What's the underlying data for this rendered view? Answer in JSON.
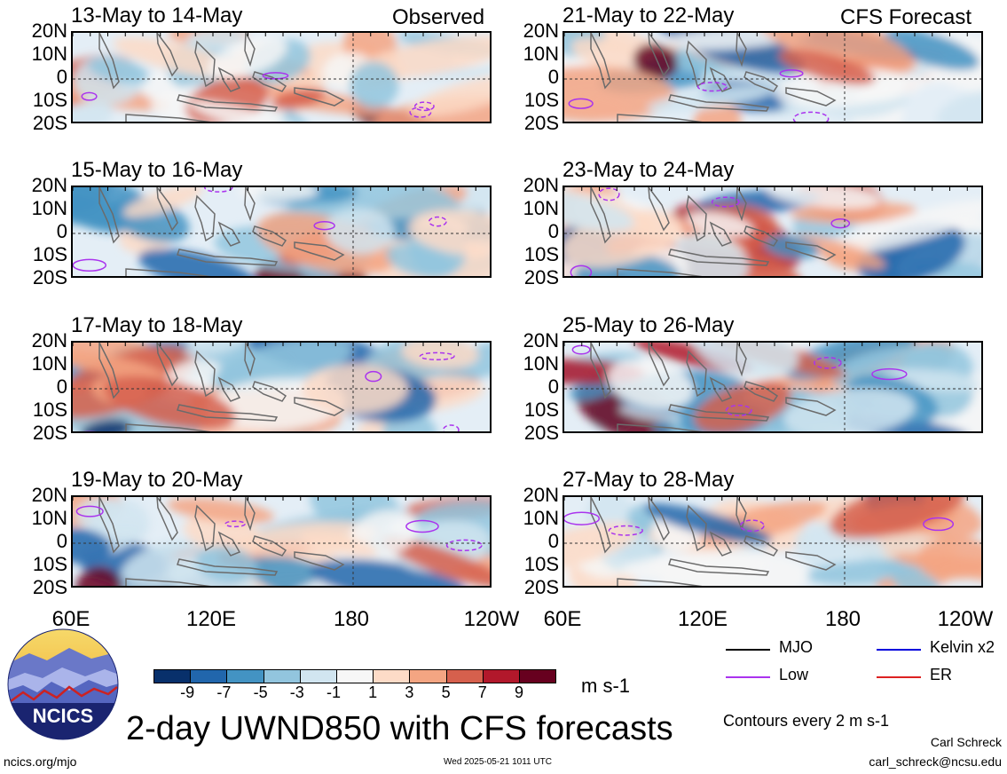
{
  "panels": [
    {
      "title": "13-May to 14-May",
      "tag": "Observed"
    },
    {
      "title": "21-May to 22-May",
      "tag": "CFS Forecast"
    },
    {
      "title": "15-May to 16-May",
      "tag": ""
    },
    {
      "title": "23-May to 24-May",
      "tag": ""
    },
    {
      "title": "17-May to 18-May",
      "tag": ""
    },
    {
      "title": "25-May to 26-May",
      "tag": ""
    },
    {
      "title": "19-May to 20-May",
      "tag": ""
    },
    {
      "title": "27-May to 28-May",
      "tag": ""
    }
  ],
  "chart_data": {
    "type": "heatmap",
    "title": "2-day UWND850 with CFS forecasts",
    "units": "m s-1",
    "y_ticks": [
      "20N",
      "10N",
      "0",
      "10S",
      "20S"
    ],
    "x_ticks": [
      "60E",
      "120E",
      "180",
      "120W"
    ],
    "colorbar": {
      "labels": [
        "-9",
        "-7",
        "-5",
        "-3",
        "-1",
        "1",
        "3",
        "5",
        "7",
        "9"
      ],
      "colors": [
        "#08306b",
        "#2166ac",
        "#4393c3",
        "#92c5de",
        "#d1e5f0",
        "#f7f7f7",
        "#fddbc7",
        "#f4a582",
        "#d6604d",
        "#b2182b",
        "#67001f"
      ]
    },
    "legend": [
      {
        "label": "MJO",
        "color": "#000000"
      },
      {
        "label": "Kelvin x2",
        "color": "#0000dd"
      },
      {
        "label": "Low",
        "color": "#aa33ee"
      },
      {
        "label": "ER",
        "color": "#dd2222"
      }
    ],
    "contour_note": "Contours every 2 m s-1"
  },
  "logo": {
    "text": "NCICS"
  },
  "footer": {
    "url": "ncics.org/mjo",
    "timestamp": "Wed 2025-05-21 1011 UTC",
    "author": "Carl Schreck",
    "email": "carl_schreck@ncsu.edu"
  }
}
